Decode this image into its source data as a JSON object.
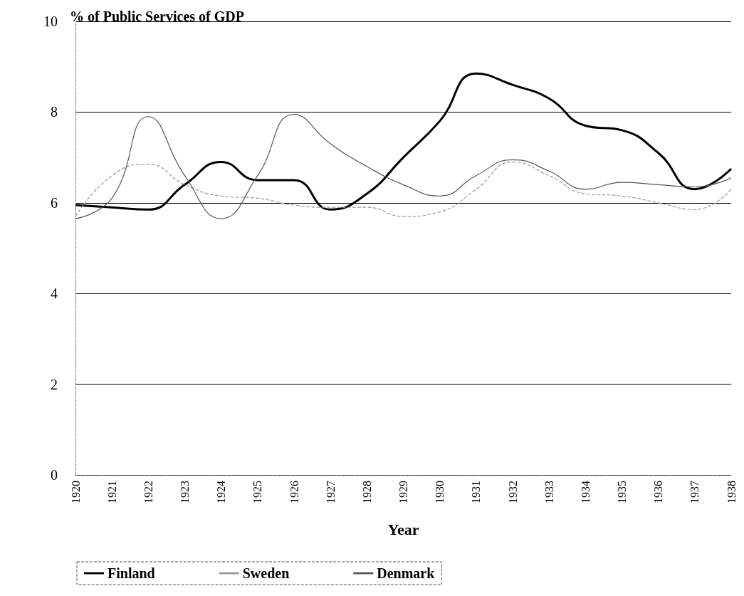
{
  "chart_data": {
    "type": "line",
    "title": "% of Public Services of GDP",
    "xlabel": "Year",
    "categories": [
      "1920",
      "1921",
      "1922",
      "1923",
      "1924",
      "1925",
      "1926",
      "1927",
      "1928",
      "1929",
      "1930",
      "1931",
      "1932",
      "1933",
      "1934",
      "1935",
      "1936",
      "1937",
      "1938"
    ],
    "series": [
      {
        "name": "Finland",
        "color": "#000000",
        "line_style": "solid",
        "values": [
          5.95,
          5.9,
          5.85,
          6.4,
          6.9,
          6.5,
          6.5,
          5.85,
          6.2,
          7.0,
          7.8,
          8.85,
          8.6,
          8.3,
          7.7,
          7.6,
          7.1,
          6.3,
          6.75
        ]
      },
      {
        "name": "Sweden",
        "color": "#999999",
        "line_style": "dashed",
        "values": [
          5.7,
          6.6,
          6.85,
          6.4,
          6.15,
          6.1,
          5.95,
          5.9,
          5.9,
          5.7,
          5.8,
          6.3,
          6.9,
          6.6,
          6.2,
          6.15,
          6.0,
          5.85,
          6.3
        ]
      },
      {
        "name": "Denmark",
        "color": "#555555",
        "line_style": "solid",
        "values": [
          5.65,
          6.1,
          7.9,
          6.6,
          5.65,
          6.6,
          7.95,
          7.3,
          6.8,
          6.4,
          6.15,
          6.6,
          6.95,
          6.7,
          6.3,
          6.45,
          6.4,
          6.35,
          6.55
        ]
      }
    ],
    "ylim": [
      0,
      10
    ],
    "yticks": [
      0,
      2,
      4,
      6,
      8,
      10
    ],
    "grid": "y",
    "legend": "bottom",
    "marker": "none"
  }
}
